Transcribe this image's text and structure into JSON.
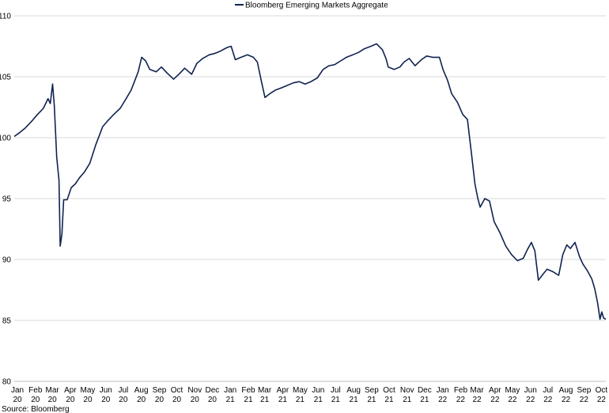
{
  "chart_data": {
    "type": "line",
    "title": "",
    "xlabel": "",
    "ylabel": "",
    "ylim": [
      80,
      110
    ],
    "yticks": [
      80,
      85,
      90,
      95,
      100,
      105,
      110
    ],
    "grid": "horizontal",
    "legend_position": "top-center",
    "x_ticks": [
      {
        "month": "Jan",
        "year": "20"
      },
      {
        "month": "Feb",
        "year": "20"
      },
      {
        "month": "Mar",
        "year": "20"
      },
      {
        "month": "Apr",
        "year": "20"
      },
      {
        "month": "May",
        "year": "20"
      },
      {
        "month": "Jun",
        "year": "20"
      },
      {
        "month": "Jul",
        "year": "20"
      },
      {
        "month": "Aug",
        "year": "20"
      },
      {
        "month": "Sep",
        "year": "20"
      },
      {
        "month": "Oct",
        "year": "20"
      },
      {
        "month": "Nov",
        "year": "20"
      },
      {
        "month": "Dec",
        "year": "20"
      },
      {
        "month": "Jan",
        "year": "21"
      },
      {
        "month": "Feb",
        "year": "21"
      },
      {
        "month": "Mar",
        "year": "21"
      },
      {
        "month": "Apr",
        "year": "21"
      },
      {
        "month": "May",
        "year": "21"
      },
      {
        "month": "Jun",
        "year": "21"
      },
      {
        "month": "Jul",
        "year": "21"
      },
      {
        "month": "Aug",
        "year": "21"
      },
      {
        "month": "Sep",
        "year": "21"
      },
      {
        "month": "Oct",
        "year": "21"
      },
      {
        "month": "Nov",
        "year": "21"
      },
      {
        "month": "Dec",
        "year": "21"
      },
      {
        "month": "Jan",
        "year": "22"
      },
      {
        "month": "Feb",
        "year": "22"
      },
      {
        "month": "Mar",
        "year": "22"
      },
      {
        "month": "Apr",
        "year": "22"
      },
      {
        "month": "May",
        "year": "22"
      },
      {
        "month": "Jun",
        "year": "22"
      },
      {
        "month": "Jul",
        "year": "22"
      },
      {
        "month": "Aug",
        "year": "22"
      },
      {
        "month": "Sep",
        "year": "22"
      },
      {
        "month": "Oct",
        "year": "22"
      }
    ],
    "series": [
      {
        "name": "Bloomberg Emerging Markets Aggregate",
        "color": "#0f2350",
        "points": [
          [
            "2020-01-01",
            100.1
          ],
          [
            "2020-01-10",
            100.4
          ],
          [
            "2020-01-20",
            100.8
          ],
          [
            "2020-02-01",
            101.4
          ],
          [
            "2020-02-10",
            101.9
          ],
          [
            "2020-02-20",
            102.4
          ],
          [
            "2020-02-28",
            103.2
          ],
          [
            "2020-03-03",
            102.8
          ],
          [
            "2020-03-07",
            104.4
          ],
          [
            "2020-03-10",
            102.6
          ],
          [
            "2020-03-14",
            98.4
          ],
          [
            "2020-03-18",
            96.5
          ],
          [
            "2020-03-20",
            91.1
          ],
          [
            "2020-03-23",
            92.1
          ],
          [
            "2020-03-26",
            94.9
          ],
          [
            "2020-04-01",
            94.9
          ],
          [
            "2020-04-08",
            95.9
          ],
          [
            "2020-04-15",
            96.2
          ],
          [
            "2020-04-22",
            96.7
          ],
          [
            "2020-05-01",
            97.2
          ],
          [
            "2020-05-10",
            97.9
          ],
          [
            "2020-05-20",
            99.4
          ],
          [
            "2020-06-01",
            100.9
          ],
          [
            "2020-06-10",
            101.4
          ],
          [
            "2020-06-20",
            101.9
          ],
          [
            "2020-07-01",
            102.4
          ],
          [
            "2020-07-10",
            103.1
          ],
          [
            "2020-07-20",
            103.9
          ],
          [
            "2020-08-01",
            105.4
          ],
          [
            "2020-08-07",
            106.6
          ],
          [
            "2020-08-14",
            106.3
          ],
          [
            "2020-08-21",
            105.6
          ],
          [
            "2020-09-01",
            105.4
          ],
          [
            "2020-09-10",
            105.8
          ],
          [
            "2020-09-20",
            105.3
          ],
          [
            "2020-10-01",
            104.8
          ],
          [
            "2020-10-10",
            105.2
          ],
          [
            "2020-10-20",
            105.7
          ],
          [
            "2020-11-01",
            105.2
          ],
          [
            "2020-11-10",
            106.1
          ],
          [
            "2020-11-20",
            106.5
          ],
          [
            "2020-12-01",
            106.8
          ],
          [
            "2020-12-10",
            106.9
          ],
          [
            "2020-12-20",
            107.1
          ],
          [
            "2021-01-01",
            107.4
          ],
          [
            "2021-01-08",
            107.5
          ],
          [
            "2021-01-15",
            106.4
          ],
          [
            "2021-01-25",
            106.6
          ],
          [
            "2021-02-05",
            106.8
          ],
          [
            "2021-02-15",
            106.6
          ],
          [
            "2021-02-22",
            106.2
          ],
          [
            "2021-03-01",
            104.6
          ],
          [
            "2021-03-07",
            103.3
          ],
          [
            "2021-03-15",
            103.6
          ],
          [
            "2021-03-25",
            103.9
          ],
          [
            "2021-04-05",
            104.1
          ],
          [
            "2021-04-15",
            104.3
          ],
          [
            "2021-04-25",
            104.5
          ],
          [
            "2021-05-05",
            104.6
          ],
          [
            "2021-05-15",
            104.4
          ],
          [
            "2021-05-25",
            104.6
          ],
          [
            "2021-06-05",
            104.9
          ],
          [
            "2021-06-15",
            105.6
          ],
          [
            "2021-06-25",
            105.9
          ],
          [
            "2021-07-05",
            106.0
          ],
          [
            "2021-07-15",
            106.3
          ],
          [
            "2021-07-25",
            106.6
          ],
          [
            "2021-08-05",
            106.8
          ],
          [
            "2021-08-15",
            107.0
          ],
          [
            "2021-08-25",
            107.3
          ],
          [
            "2021-09-05",
            107.5
          ],
          [
            "2021-09-15",
            107.7
          ],
          [
            "2021-09-25",
            107.2
          ],
          [
            "2021-10-01",
            106.5
          ],
          [
            "2021-10-05",
            105.8
          ],
          [
            "2021-10-15",
            105.6
          ],
          [
            "2021-10-25",
            105.8
          ],
          [
            "2021-11-01",
            106.2
          ],
          [
            "2021-11-10",
            106.5
          ],
          [
            "2021-11-20",
            105.9
          ],
          [
            "2021-12-01",
            106.4
          ],
          [
            "2021-12-10",
            106.7
          ],
          [
            "2021-12-20",
            106.6
          ],
          [
            "2022-01-01",
            106.6
          ],
          [
            "2022-01-07",
            105.6
          ],
          [
            "2022-01-15",
            104.7
          ],
          [
            "2022-01-22",
            103.6
          ],
          [
            "2022-02-01",
            102.9
          ],
          [
            "2022-02-10",
            101.9
          ],
          [
            "2022-02-18",
            101.5
          ],
          [
            "2022-02-25",
            98.7
          ],
          [
            "2022-03-03",
            96.2
          ],
          [
            "2022-03-08",
            95.0
          ],
          [
            "2022-03-12",
            94.3
          ],
          [
            "2022-03-20",
            95.0
          ],
          [
            "2022-03-28",
            94.8
          ],
          [
            "2022-04-05",
            93.1
          ],
          [
            "2022-04-15",
            92.2
          ],
          [
            "2022-04-25",
            91.1
          ],
          [
            "2022-05-05",
            90.4
          ],
          [
            "2022-05-15",
            89.9
          ],
          [
            "2022-05-25",
            90.1
          ],
          [
            "2022-06-01",
            90.8
          ],
          [
            "2022-06-08",
            91.4
          ],
          [
            "2022-06-14",
            90.7
          ],
          [
            "2022-06-20",
            88.3
          ],
          [
            "2022-06-28",
            88.8
          ],
          [
            "2022-07-05",
            89.2
          ],
          [
            "2022-07-15",
            89.0
          ],
          [
            "2022-07-25",
            88.7
          ],
          [
            "2022-08-01",
            90.4
          ],
          [
            "2022-08-08",
            91.2
          ],
          [
            "2022-08-14",
            90.9
          ],
          [
            "2022-08-22",
            91.4
          ],
          [
            "2022-08-30",
            90.2
          ],
          [
            "2022-09-05",
            89.6
          ],
          [
            "2022-09-12",
            89.1
          ],
          [
            "2022-09-20",
            88.4
          ],
          [
            "2022-09-25",
            87.6
          ],
          [
            "2022-09-30",
            86.4
          ],
          [
            "2022-10-04",
            85.1
          ],
          [
            "2022-10-07",
            85.7
          ],
          [
            "2022-10-10",
            85.2
          ],
          [
            "2022-10-14",
            85.1
          ]
        ]
      }
    ]
  },
  "source": "Source: Bloomberg"
}
